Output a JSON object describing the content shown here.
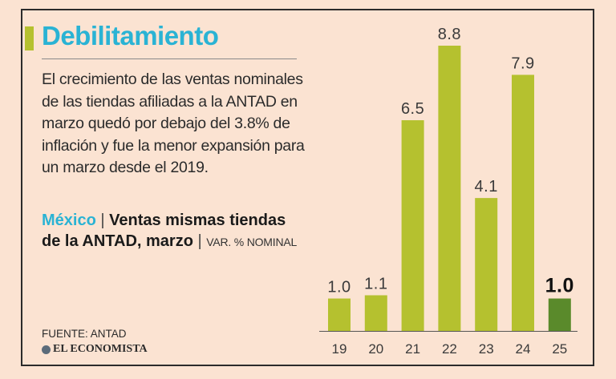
{
  "header": {
    "title": "Debilitamiento",
    "description": "El crecimiento de las ventas nominales de las tiendas afiliadas a la ANTAD en marzo quedó por debajo del 3.8% de inflación y fue la menor expansión para un marzo desde el 2019."
  },
  "subtitle": {
    "region": "México",
    "sep1": " | ",
    "metric": "Ventas mismas tiendas de la ANTAD, marzo",
    "sep2": " | ",
    "unit": "VAR. % NOMINAL"
  },
  "footer": {
    "source": "FUENTE: ANTAD",
    "logo": "EL ECONOMISTA"
  },
  "colors": {
    "accent": "#b5c12f",
    "title": "#2ab3d4",
    "bar": "#b5c12f",
    "highlight_bar": "#5a8a2b"
  },
  "chart_data": {
    "type": "bar",
    "categories": [
      "19",
      "20",
      "21",
      "22",
      "23",
      "24",
      "25"
    ],
    "values": [
      1.0,
      1.1,
      6.5,
      8.8,
      4.1,
      7.9,
      1.0
    ],
    "data_labels": [
      "1.0",
      "1.1",
      "6.5",
      "8.8",
      "4.1",
      "7.9",
      "1.0"
    ],
    "highlight_index": 6,
    "ylim": [
      0,
      8.8
    ],
    "grid": false,
    "legend": "none"
  }
}
